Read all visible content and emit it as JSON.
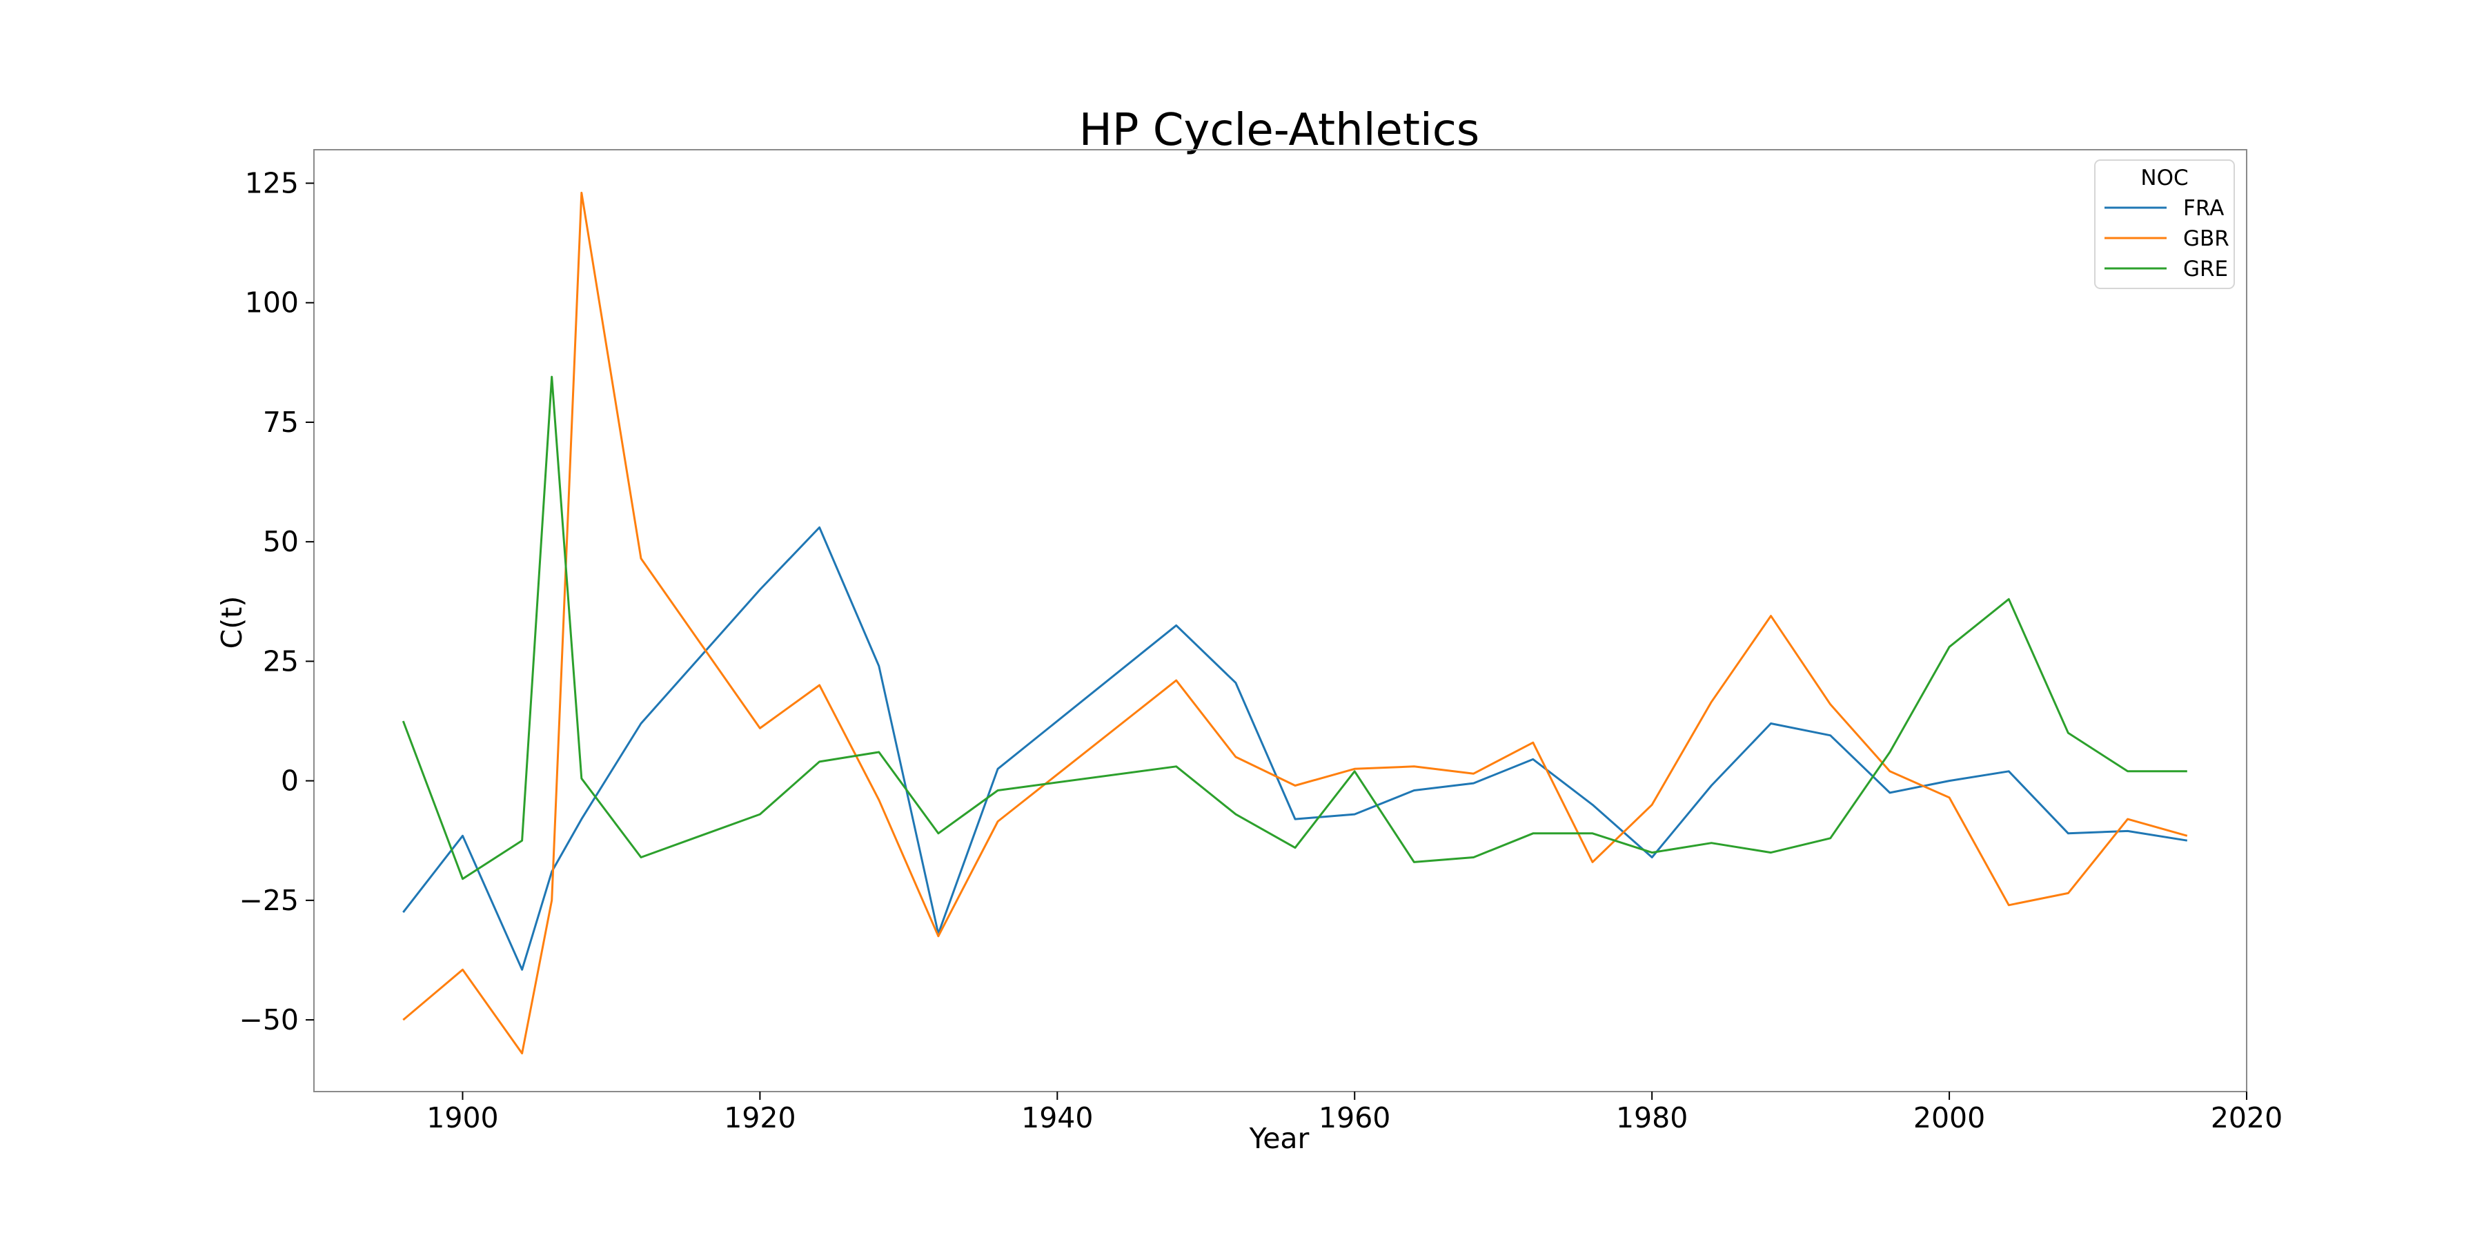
{
  "chart_data": {
    "type": "line",
    "title": "HP Cycle-Athletics",
    "xlabel": "Year",
    "ylabel": "C(t)",
    "xlim": [
      1890,
      2020
    ],
    "ylim": [
      -65,
      132
    ],
    "xticks": [
      1900,
      1920,
      1940,
      1960,
      1980,
      2000,
      2020
    ],
    "yticks": [
      -50,
      -25,
      0,
      25,
      50,
      75,
      100,
      125
    ],
    "grid": false,
    "legend": {
      "title": "NOC",
      "position": "top-right"
    },
    "series": [
      {
        "name": "FRA",
        "color": "#1f77b4",
        "x": [
          1896,
          1900,
          1904,
          1906,
          1908,
          1912,
          1920,
          1924,
          1928,
          1932,
          1936,
          1948,
          1952,
          1956,
          1960,
          1964,
          1968,
          1972,
          1976,
          1980,
          1984,
          1988,
          1992,
          1996,
          2000,
          2004,
          2008,
          2012,
          2016
        ],
        "y": [
          -27.5,
          -11.5,
          -39.5,
          -19,
          -8,
          12,
          40,
          53,
          24,
          -32,
          2.5,
          32.5,
          20.5,
          -8,
          -7,
          -2,
          -0.5,
          4.5,
          -5,
          -16,
          -1,
          12,
          9.5,
          -2.5,
          0,
          2,
          -11,
          -10.5,
          -12.5
        ]
      },
      {
        "name": "GBR",
        "color": "#ff7f0e",
        "x": [
          1896,
          1900,
          1904,
          1906,
          1908,
          1912,
          1920,
          1924,
          1928,
          1932,
          1936,
          1948,
          1952,
          1956,
          1960,
          1964,
          1968,
          1972,
          1976,
          1980,
          1984,
          1988,
          1992,
          1996,
          2000,
          2004,
          2008,
          2012,
          2016
        ],
        "y": [
          -50,
          -39.5,
          -57,
          -25,
          123,
          46.5,
          11,
          20,
          -4,
          -32.5,
          -8.5,
          21,
          5,
          -1,
          2.5,
          3,
          1.5,
          8,
          -17,
          -5,
          16.5,
          34.5,
          16,
          2,
          -3.5,
          -26,
          -23.5,
          -8,
          -11.5
        ]
      },
      {
        "name": "GRE",
        "color": "#2ca02c",
        "x": [
          1896,
          1900,
          1904,
          1906,
          1908,
          1912,
          1920,
          1924,
          1928,
          1932,
          1936,
          1948,
          1952,
          1956,
          1960,
          1964,
          1968,
          1972,
          1976,
          1980,
          1984,
          1988,
          1992,
          1996,
          2000,
          2004,
          2008,
          2012,
          2016
        ],
        "y": [
          12.5,
          -20.5,
          -12.5,
          84.5,
          0.5,
          -16,
          -7,
          4,
          6,
          -11,
          -2,
          3,
          -7,
          -14,
          2,
          -17,
          -16,
          -11,
          -11,
          -15,
          -13,
          -15,
          -12,
          6,
          28,
          38,
          10,
          2,
          2
        ]
      }
    ]
  }
}
